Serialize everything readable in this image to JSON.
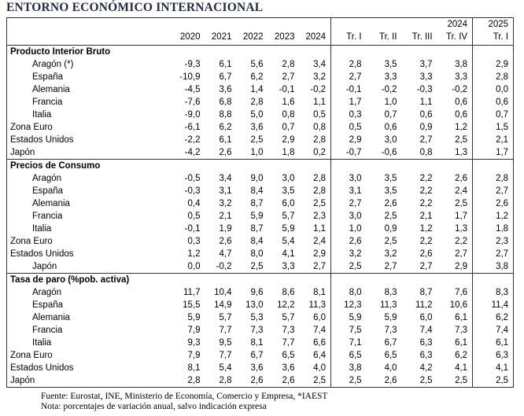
{
  "title": "ENTORNO ECONÓMICO INTERNACIONAL",
  "table": {
    "header_top": [
      "2024",
      "2025"
    ],
    "columns": [
      "2020",
      "2021",
      "2022",
      "2023",
      "2024",
      "Tr. I",
      "Tr. II",
      "Tr. III",
      "Tr. IV",
      "Tr. I"
    ],
    "sections": [
      {
        "title": "Producto Interior Bruto",
        "rows": [
          {
            "label": "Aragón (*)",
            "values": [
              "-9,3",
              "6,1",
              "5,6",
              "2,8",
              "3,4",
              "2,8",
              "3,5",
              "3,7",
              "3,8",
              "2,9"
            ]
          },
          {
            "label": "España",
            "values": [
              "-10,9",
              "6,7",
              "6,2",
              "2,7",
              "3,2",
              "2,7",
              "3,3",
              "3,3",
              "3,3",
              "2,8"
            ]
          },
          {
            "label": "Alemania",
            "values": [
              "-4,5",
              "3,6",
              "1,4",
              "-0,1",
              "-0,2",
              "-0,1",
              "-0,2",
              "-0,3",
              "-0,2",
              "0,0"
            ]
          },
          {
            "label": "Francia",
            "values": [
              "-7,6",
              "6,8",
              "2,8",
              "1,6",
              "1,1",
              "1,7",
              "1,0",
              "1,1",
              "0,6",
              "0,6"
            ]
          },
          {
            "label": "Italia",
            "values": [
              "-9,0",
              "8,8",
              "5,0",
              "0,8",
              "0,5",
              "0,3",
              "0,7",
              "0,6",
              "0,6",
              "0,7"
            ]
          },
          {
            "label": "Zona Euro",
            "values": [
              "-6,1",
              "6,2",
              "3,6",
              "0,7",
              "0,8",
              "0,5",
              "0,6",
              "0,9",
              "1,2",
              "1,5"
            ]
          },
          {
            "label": "Estados Unidos",
            "values": [
              "-2,2",
              "6,1",
              "2,5",
              "2,9",
              "2,8",
              "2,9",
              "3,0",
              "2,7",
              "2,5",
              "2,1"
            ]
          },
          {
            "label": "Japón",
            "values": [
              "-4,2",
              "2,6",
              "1,0",
              "1,8",
              "0,2",
              "-0,7",
              "-0,6",
              "0,8",
              "1,3",
              "1,7"
            ]
          }
        ]
      },
      {
        "title": "Precios de Consumo",
        "rows": [
          {
            "label": "Aragón",
            "values": [
              "-0,5",
              "3,4",
              "9,0",
              "3,0",
              "2,8",
              "3,0",
              "3,5",
              "2,2",
              "2,6",
              "2,8"
            ]
          },
          {
            "label": "España",
            "values": [
              "-0,3",
              "3,1",
              "8,4",
              "3,5",
              "2,8",
              "3,1",
              "3,5",
              "2,2",
              "2,4",
              "2,7"
            ]
          },
          {
            "label": "Alemania",
            "values": [
              "0,4",
              "3,2",
              "8,7",
              "6,0",
              "2,5",
              "2,7",
              "2,6",
              "2,2",
              "2,5",
              "2,6"
            ]
          },
          {
            "label": "Francia",
            "values": [
              "0,5",
              "2,1",
              "5,9",
              "5,7",
              "2,3",
              "3,0",
              "2,5",
              "2,1",
              "1,7",
              "1,2"
            ]
          },
          {
            "label": "Italia",
            "values": [
              "-0,1",
              "1,9",
              "8,7",
              "5,9",
              "1,1",
              "1,0",
              "0,9",
              "1,2",
              "1,3",
              "1,8"
            ]
          },
          {
            "label": "Zona Euro",
            "values": [
              "0,3",
              "2,6",
              "8,4",
              "5,4",
              "2,4",
              "2,6",
              "2,5",
              "2,2",
              "2,2",
              "2,3"
            ]
          },
          {
            "label": "Estados Unidos",
            "values": [
              "1,2",
              "4,7",
              "8,0",
              "4,1",
              "2,9",
              "3,2",
              "3,2",
              "2,6",
              "2,7",
              "2,7"
            ]
          },
          {
            "label": "Japón",
            "values": [
              "0,0",
              "-0,2",
              "2,5",
              "3,3",
              "2,7",
              "2,5",
              "2,7",
              "2,7",
              "2,9",
              "3,8"
            ]
          }
        ]
      },
      {
        "title": "Tasa de paro (%pob. activa)",
        "rows": [
          {
            "label": "Aragón",
            "values": [
              "11,7",
              "10,4",
              "9,6",
              "8,6",
              "8,1",
              "8,0",
              "8,3",
              "8,7",
              "7,6",
              "8,3"
            ]
          },
          {
            "label": "España",
            "values": [
              "15,5",
              "14,9",
              "13,0",
              "12,2",
              "11,3",
              "12,3",
              "11,3",
              "11,2",
              "10,6",
              "11,4"
            ]
          },
          {
            "label": "Alemania",
            "values": [
              "5,9",
              "5,7",
              "5,3",
              "5,7",
              "6,0",
              "5,9",
              "5,9",
              "6,0",
              "6,1",
              "6,2"
            ]
          },
          {
            "label": "Francia",
            "values": [
              "7,9",
              "7,7",
              "7,3",
              "7,3",
              "7,4",
              "7,5",
              "7,3",
              "7,4",
              "7,3",
              "7,4"
            ]
          },
          {
            "label": "Italia",
            "values": [
              "9,3",
              "9,5",
              "8,1",
              "7,7",
              "6,6",
              "7,1",
              "6,7",
              "6,3",
              "6,1",
              "6,1"
            ]
          },
          {
            "label": "Zona Euro",
            "values": [
              "7,9",
              "7,7",
              "6,7",
              "6,5",
              "6,4",
              "6,5",
              "6,5",
              "6,3",
              "6,2",
              "6,3"
            ]
          },
          {
            "label": "Estados Unidos",
            "values": [
              "8,1",
              "5,4",
              "3,6",
              "3,6",
              "4,0",
              "3,8",
              "4,0",
              "4,2",
              "4,1",
              "4,1"
            ]
          },
          {
            "label": "Japón",
            "values": [
              "2,8",
              "2,8",
              "2,6",
              "2,6",
              "2,5",
              "2,5",
              "2,6",
              "2,5",
              "2,5",
              "2,5"
            ]
          }
        ]
      }
    ]
  },
  "notes": [
    "Fuente: Eurostat, INE, Ministerio de Economía, Comercio y Empresa, *IAEST",
    "Nota: porcentajes de variación anual, salvo indicación expresa"
  ]
}
